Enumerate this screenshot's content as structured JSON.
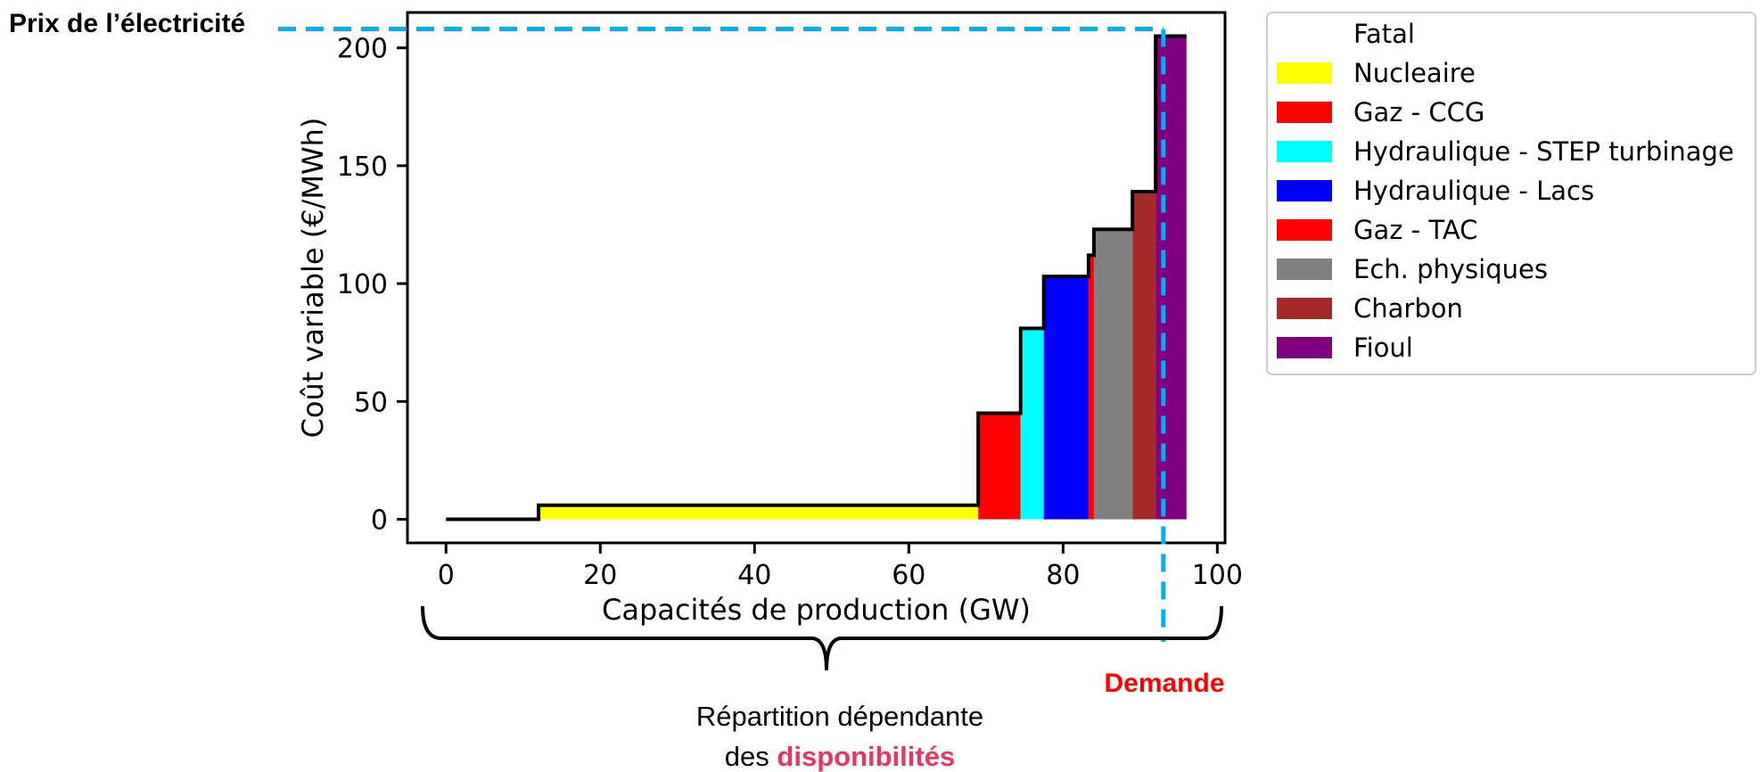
{
  "chart_data": {
    "type": "step",
    "xlabel": "Capacités de production (GW)",
    "ylabel": "Coût variable (€/MWh)",
    "xlim": [
      -5,
      101
    ],
    "ylim": [
      -10,
      215
    ],
    "xticks": [
      0,
      20,
      40,
      60,
      80,
      100
    ],
    "yticks": [
      0,
      50,
      100,
      150,
      200
    ],
    "grid": false,
    "legend_position": "outside-right",
    "series": [
      {
        "name": "Fatal",
        "color": "#ffffff",
        "x0": 0,
        "x1": 12,
        "cost": 0
      },
      {
        "name": "Nucleaire",
        "color": "#ffff00",
        "x0": 12,
        "x1": 69,
        "cost": 6
      },
      {
        "name": "Gaz - CCG",
        "color": "#ff0000",
        "x0": 69,
        "x1": 74.5,
        "cost": 45
      },
      {
        "name": "Hydraulique - STEP turbinage",
        "color": "#00ffff",
        "x0": 74.5,
        "x1": 77.5,
        "cost": 81
      },
      {
        "name": "Hydraulique - Lacs",
        "color": "#0000ff",
        "x0": 77.5,
        "x1": 83.3,
        "cost": 103
      },
      {
        "name": "Gaz - TAC",
        "color": "#ff0000",
        "x0": 83.3,
        "x1": 84,
        "cost": 112
      },
      {
        "name": "Ech. physiques",
        "color": "#808080",
        "x0": 84,
        "x1": 89,
        "cost": 123
      },
      {
        "name": "Charbon",
        "color": "#a52a2a",
        "x0": 89,
        "x1": 92,
        "cost": 139
      },
      {
        "name": "Fioul",
        "color": "#800080",
        "x0": 92,
        "x1": 96,
        "cost": 205
      }
    ],
    "demand_x": 93,
    "price_y": 208,
    "line_color": "#00b0f0"
  },
  "annotations": {
    "price_label": "Prix de l’électricité",
    "demand_label": "Demande",
    "repartition_line1": "Répartition dépendante",
    "repartition_prefix": "des ",
    "repartition_highlight": "disponibilités"
  },
  "colors": {
    "price_label": "#000000",
    "demand_label": "#ff0000",
    "highlight": "#e8365d"
  }
}
